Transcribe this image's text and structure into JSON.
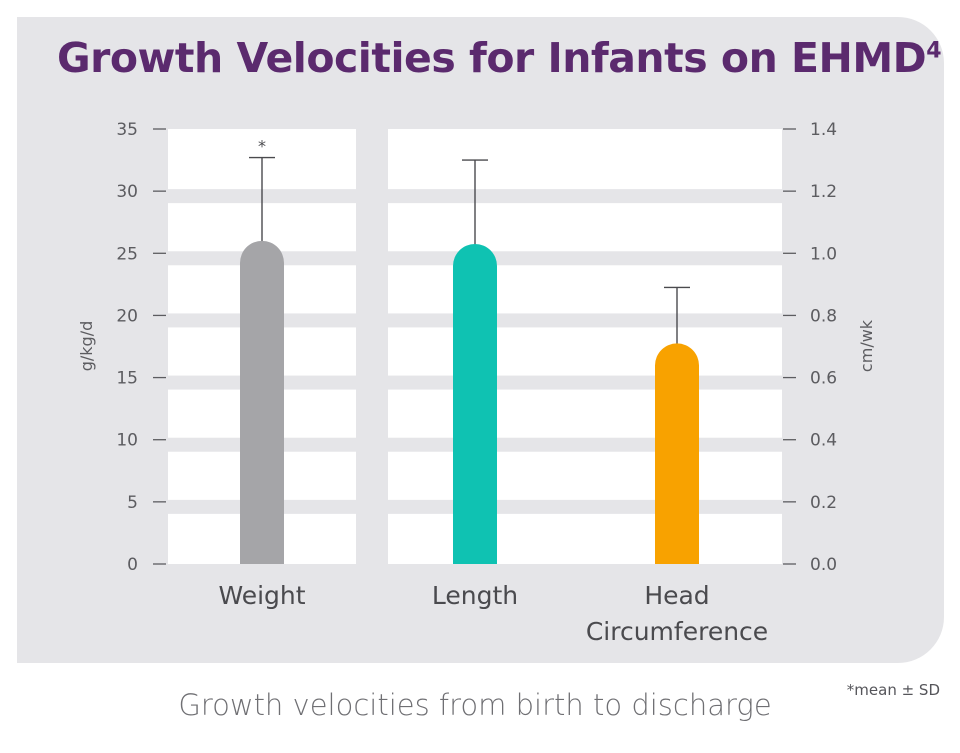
{
  "title": "Growth Velocities for Infants on EHMD",
  "title_ref": "4",
  "caption": "Growth velocities from birth to discharge",
  "footnote": "*mean ± SD",
  "colors": {
    "title": "#5b2a6e",
    "card": "#e5e5e8",
    "weight": "#a5a5a8",
    "length": "#0fc2b2",
    "head": "#f8a200"
  },
  "chart_data": {
    "type": "bar",
    "categories": [
      "Weight",
      "Length",
      "Head Circumference"
    ],
    "category_lines": [
      [
        "Weight"
      ],
      [
        "Length"
      ],
      [
        "Head",
        "Circumference"
      ]
    ],
    "values": [
      26,
      1.03,
      0.71
    ],
    "errors": [
      6.7,
      0.27,
      0.18
    ],
    "axis": [
      "left",
      "right",
      "right"
    ],
    "annotations": [
      "*",
      "",
      ""
    ],
    "bar_colors": [
      "#a5a5a8",
      "#0fc2b2",
      "#f8a200"
    ],
    "left_axis": {
      "label": "g/kg/d",
      "min": 0,
      "max": 35,
      "ticks": [
        0,
        5,
        10,
        15,
        20,
        25,
        30,
        35
      ]
    },
    "right_axis": {
      "label": "cm/wk",
      "min": 0,
      "max": 1.4,
      "ticks": [
        "0.0",
        "0.2",
        "0.4",
        "0.6",
        "0.8",
        "1.0",
        "1.2",
        "1.4"
      ]
    },
    "grid": true
  }
}
